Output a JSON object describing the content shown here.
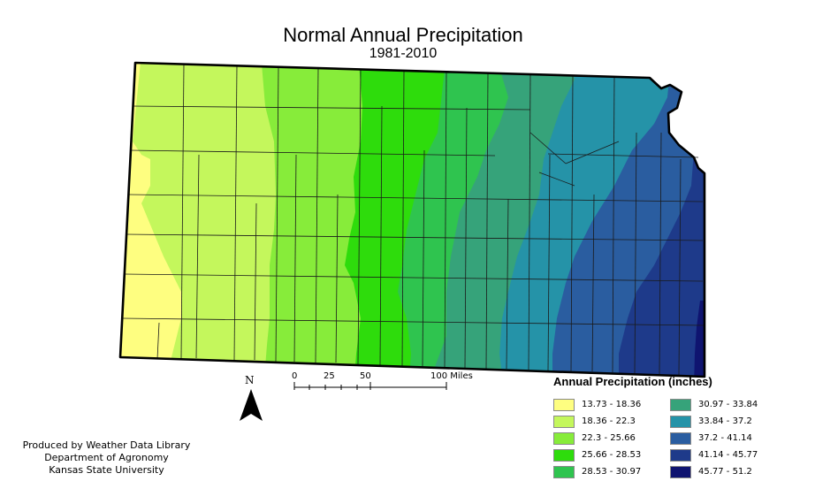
{
  "map": {
    "title": "Normal Annual Precipitation",
    "subtitle": "1981-2010",
    "bands": [
      {
        "range": "13.73 - 18.36",
        "color": "#fefe80"
      },
      {
        "range": "18.36 - 22.3",
        "color": "#c4f75c"
      },
      {
        "range": "22.3 - 25.66",
        "color": "#87ec3a"
      },
      {
        "range": "25.66 - 28.53",
        "color": "#2edc0c"
      },
      {
        "range": "28.53 - 30.97",
        "color": "#2fc44f"
      },
      {
        "range": "30.97 - 33.84",
        "color": "#36a37a"
      },
      {
        "range": "33.84 - 37.2",
        "color": "#2593a8"
      },
      {
        "range": "37.2 - 41.14",
        "color": "#2a5da0"
      },
      {
        "range": "41.14 - 45.77",
        "color": "#1e3a8a"
      },
      {
        "range": "45.77 - 51.2",
        "color": "#0f1470"
      }
    ]
  },
  "legend": {
    "title": "Annual Precipitation (inches)"
  },
  "scale_bar": {
    "ticks": [
      "0",
      "25",
      "50",
      "100 Miles"
    ]
  },
  "north_arrow": {
    "label": "N",
    "icon": "north-arrow-icon"
  },
  "credit": {
    "line1": "Produced by Weather Data Library",
    "line2": "Department of Agronomy",
    "line3": "Kansas State University"
  }
}
